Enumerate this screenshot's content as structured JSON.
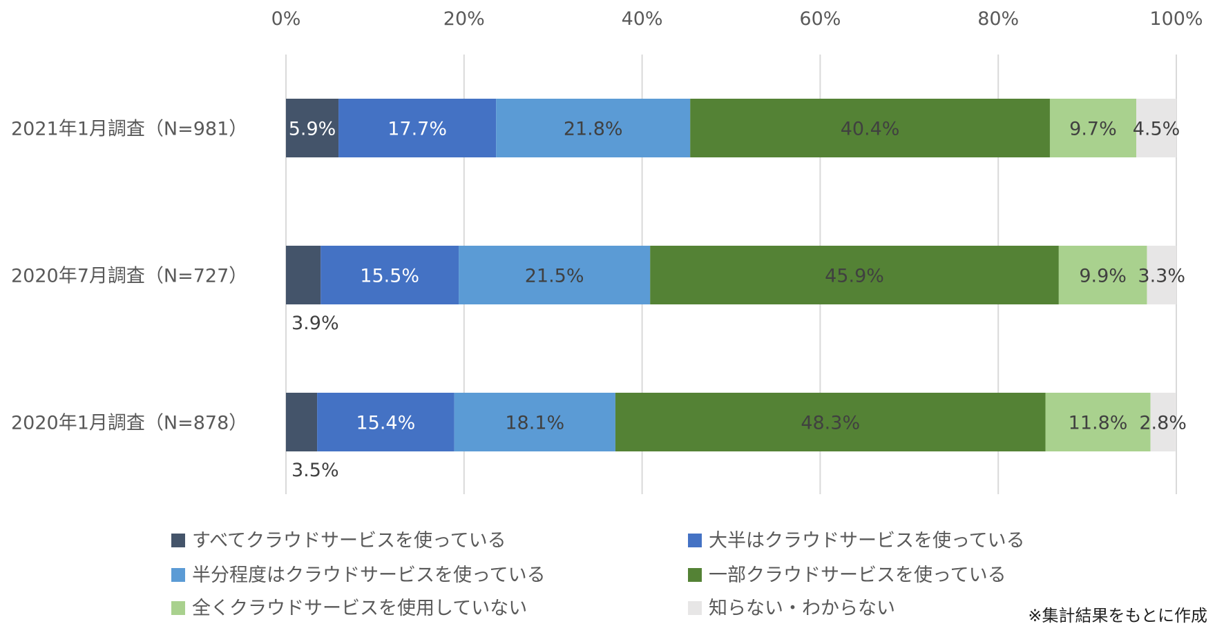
{
  "chart_data": {
    "type": "bar",
    "orientation": "horizontal",
    "stacked": "percent",
    "categories": [
      "2021年1月調査（N=981）",
      "2020年7月調査（N=727）",
      "2020年1月調査（N=878）"
    ],
    "series": [
      {
        "name": "すべてクラウドサービスを使っている",
        "color": "#44546A",
        "label_color": "#FFFFFF",
        "values": [
          5.9,
          3.9,
          3.5
        ]
      },
      {
        "name": "大半はクラウドサービスを使っている",
        "color": "#4472C4",
        "label_color": "#FFFFFF",
        "values": [
          17.7,
          15.5,
          15.4
        ]
      },
      {
        "name": "半分程度はクラウドサービスを使っている",
        "color": "#5B9BD5",
        "label_color": "#404040",
        "values": [
          21.8,
          21.5,
          18.1
        ]
      },
      {
        "name": "一部クラウドサービスを使っている",
        "color": "#548235",
        "label_color": "#404040",
        "values": [
          40.4,
          45.9,
          48.3
        ]
      },
      {
        "name": "全くクラウドサービスを使用していない",
        "color": "#A9D18E",
        "label_color": "#404040",
        "values": [
          9.7,
          9.9,
          11.8
        ]
      },
      {
        "name": "知らない・わからない",
        "color": "#E7E6E6",
        "label_color": "#404040",
        "values": [
          4.5,
          3.3,
          2.8
        ]
      }
    ],
    "xlim": [
      0,
      100
    ],
    "xticks": [
      "0%",
      "20%",
      "40%",
      "60%",
      "80%",
      "100%"
    ],
    "grid": true,
    "axis_position": "top",
    "legend_position": "bottom",
    "note": "※集計結果をもとに作成"
  }
}
